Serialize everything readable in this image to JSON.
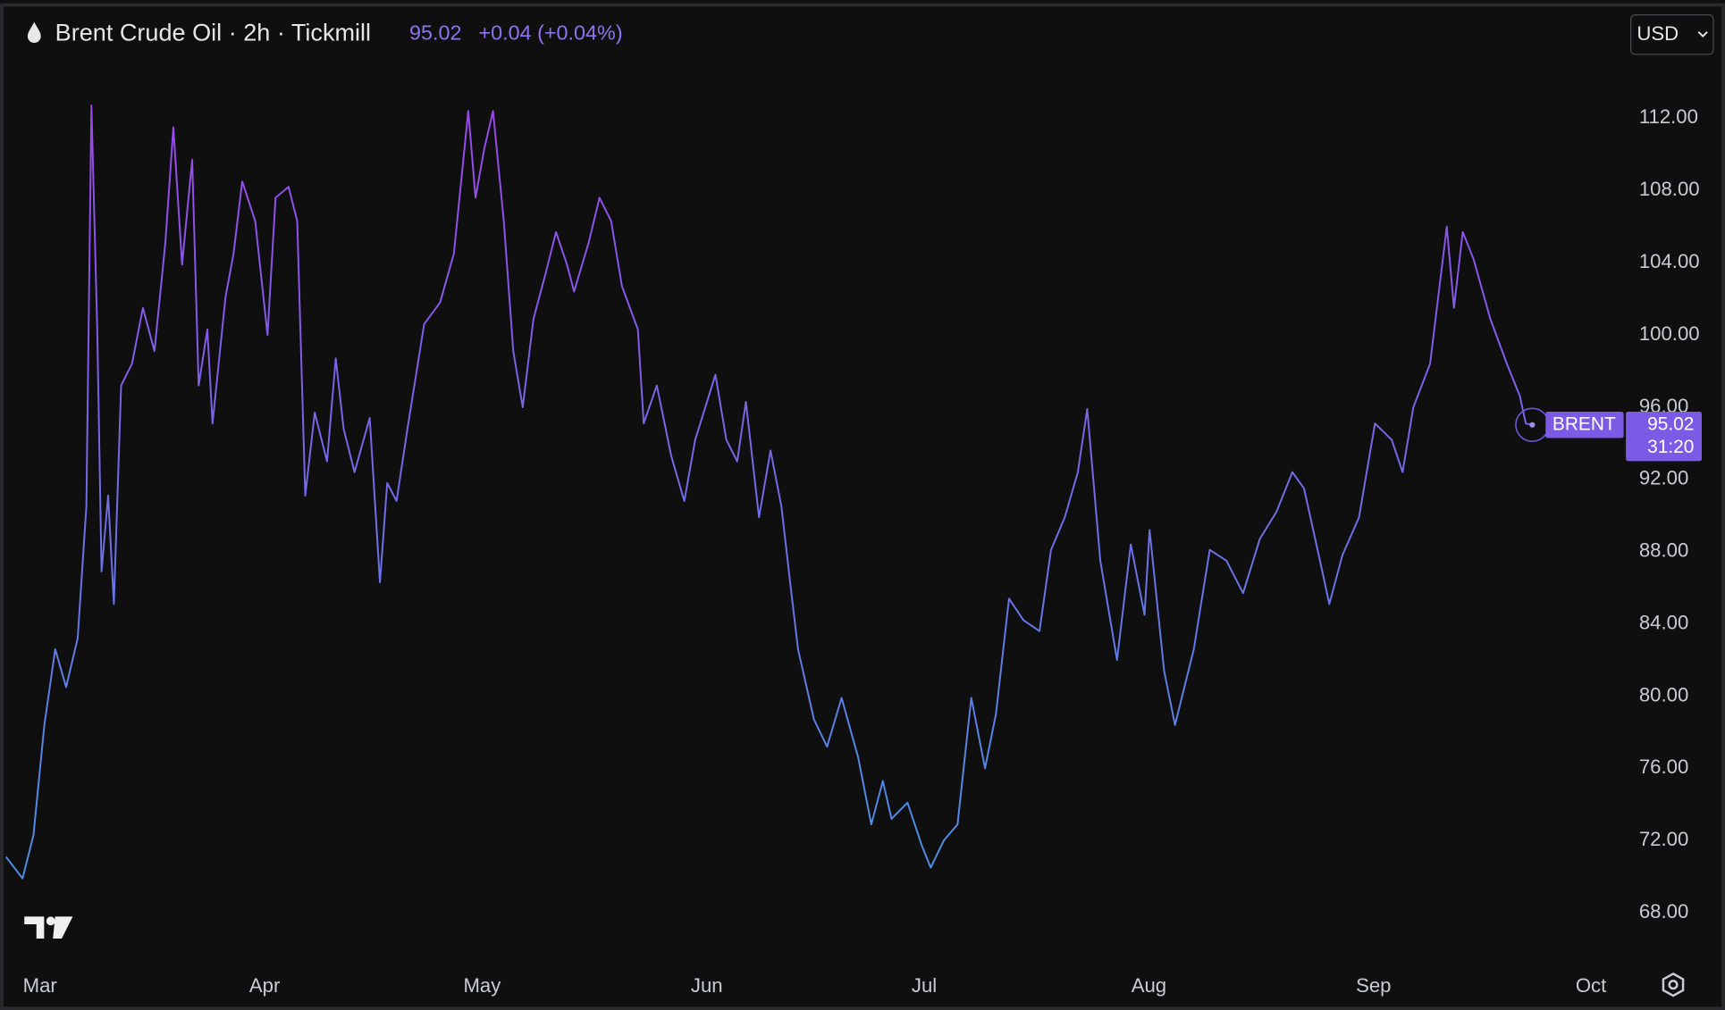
{
  "chart_data": {
    "type": "line",
    "title": "Brent Crude Oil · 2h · Tickmill",
    "last_price": 95.02,
    "change": "+0.04 (+0.04%)",
    "currency": "USD",
    "symbol": "BRENT",
    "countdown": "31:20",
    "x": [
      -4.7,
      -2.4,
      -0.9,
      0.6,
      2.1,
      3.6,
      5.2,
      6.4,
      7.1,
      7.9,
      8.5,
      9.4,
      10.2,
      11.2,
      12.7,
      14.2,
      15.8,
      17.3,
      18.4,
      19.6,
      21.0,
      21.9,
      23.1,
      23.8,
      25.6,
      26.7,
      27.9,
      29.7,
      31.4,
      32.5,
      34.3,
      35.5,
      36.6,
      37.9,
      39.6,
      40.8,
      41.9,
      43.4,
      45.5,
      46.9,
      47.9,
      49.2,
      50.7,
      53.0,
      55.2,
      57.1,
      59.1,
      60.1,
      61.3,
      62.5,
      64.0,
      65.3,
      66.6,
      68.1,
      69.7,
      71.2,
      72.7,
      73.7,
      75.7,
      77.2,
      78.8,
      80.3,
      82.5,
      83.3,
      85.1,
      87.1,
      88.9,
      90.4,
      93.2,
      94.7,
      96.2,
      97.4,
      99.2,
      100.8,
      102.3,
      103.5,
      104.6,
      106.8,
      108.6,
      110.6,
      112.9,
      114.7,
      116.3,
      117.5,
      119.7,
      121.7,
      122.9,
      124.7,
      126.6,
      128.5,
      130.4,
      131.9,
      133.7,
      135.7,
      137.9,
      139.5,
      141.4,
      143.2,
      144.5,
      146.3,
      148.6,
      150.5,
      152.4,
      153.1,
      155.1,
      156.6,
      159.2,
      161.4,
      163.7,
      166.0,
      168.3,
      170.6,
      172.8,
      174.4,
      176.6,
      177.9,
      179.7,
      182.0,
      184.2,
      186.5,
      188.0,
      189.5,
      191.8,
      194.1,
      195.1,
      196.3,
      197.8,
      200.1,
      202.4,
      204.2,
      205.0,
      205.9
    ],
    "series": [
      {
        "name": "BRENT",
        "color": [
          "#9a48ec",
          "#4d8fe4"
        ],
        "values": [
          71.1,
          69.9,
          72.3,
          78.4,
          82.6,
          80.5,
          83.2,
          90.5,
          112.7,
          100.3,
          86.9,
          91.1,
          85.1,
          97.2,
          98.4,
          101.5,
          99.1,
          105.1,
          111.5,
          103.9,
          109.7,
          97.2,
          100.3,
          95.1,
          102.1,
          104.5,
          108.5,
          106.3,
          100.0,
          107.6,
          108.2,
          106.3,
          91.1,
          95.7,
          93.0,
          98.7,
          94.8,
          92.4,
          95.4,
          86.3,
          91.8,
          90.8,
          94.8,
          100.6,
          101.8,
          104.5,
          112.4,
          107.6,
          110.3,
          112.4,
          106.3,
          99.1,
          96.0,
          100.9,
          103.3,
          105.7,
          103.9,
          102.4,
          105.1,
          107.6,
          106.3,
          102.7,
          100.3,
          95.1,
          97.2,
          93.3,
          90.8,
          94.2,
          97.8,
          94.2,
          93.0,
          96.3,
          89.9,
          93.6,
          90.5,
          86.3,
          82.6,
          78.7,
          77.2,
          79.9,
          76.6,
          72.9,
          75.3,
          73.2,
          74.1,
          71.7,
          70.5,
          72.0,
          72.9,
          79.9,
          76.0,
          79.0,
          85.4,
          84.2,
          83.6,
          88.1,
          89.9,
          92.4,
          95.9,
          87.5,
          82.0,
          88.4,
          84.5,
          89.2,
          81.4,
          78.4,
          82.6,
          88.1,
          87.5,
          85.7,
          88.7,
          90.2,
          92.4,
          91.5,
          87.5,
          85.1,
          87.8,
          89.9,
          95.1,
          94.2,
          92.4,
          96.0,
          98.4,
          106.0,
          101.5,
          105.7,
          104.2,
          100.9,
          98.4,
          96.6,
          95.1,
          95.02
        ]
      }
    ],
    "xlim": [
      -5.5,
      217.6
    ],
    "xticks": [
      {
        "value": 0,
        "label": "Mar"
      },
      {
        "value": 31,
        "label": "Apr"
      },
      {
        "value": 61,
        "label": "May"
      },
      {
        "value": 92,
        "label": "Jun"
      },
      {
        "value": 122,
        "label": "Jul"
      },
      {
        "value": 153,
        "label": "Aug"
      },
      {
        "value": 184,
        "label": "Sep"
      },
      {
        "value": 214,
        "label": "Oct"
      }
    ],
    "ylim": [
      65.6,
      115.2
    ],
    "yticks": [
      {
        "value": 68,
        "label": "68.00"
      },
      {
        "value": 72,
        "label": "72.00"
      },
      {
        "value": 76,
        "label": "76.00"
      },
      {
        "value": 80,
        "label": "80.00"
      },
      {
        "value": 84,
        "label": "84.00"
      },
      {
        "value": 88,
        "label": "88.00"
      },
      {
        "value": 92,
        "label": "92.00"
      },
      {
        "value": 96,
        "label": "96.00"
      },
      {
        "value": 100,
        "label": "100.00"
      },
      {
        "value": 104,
        "label": "104.00"
      },
      {
        "value": 108,
        "label": "108.00"
      },
      {
        "value": 112,
        "label": "112.00"
      }
    ]
  }
}
